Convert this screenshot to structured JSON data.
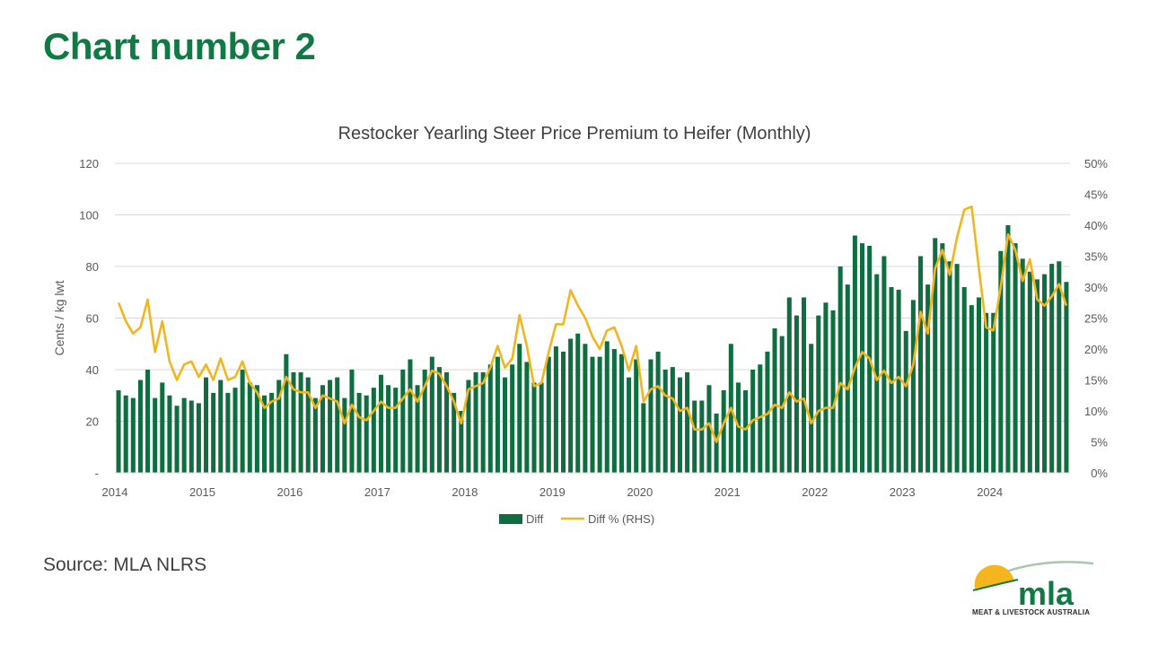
{
  "slide": {
    "title": "Chart number 2",
    "source": "Source: MLA NLRS"
  },
  "logo": {
    "wordmark": "mla",
    "tagline": "MEAT & LIVESTOCK AUSTRALIA",
    "colors": {
      "sun": "#f5b51c",
      "green": "#0f7a44",
      "arc": "#a7c9a9"
    }
  },
  "chart_data": {
    "type": "bar",
    "title": "Restocker Yearling Steer Price Premium to Heifer (Monthly)",
    "ylabel": "Cents / kg lwt",
    "y2label": "",
    "ylim": [
      0,
      120
    ],
    "y2lim": [
      0,
      0.5
    ],
    "yticks": [
      "-",
      "20",
      "40",
      "60",
      "80",
      "100",
      "120"
    ],
    "y2ticks": [
      "0%",
      "5%",
      "10%",
      "15%",
      "20%",
      "25%",
      "30%",
      "35%",
      "40%",
      "45%",
      "50%"
    ],
    "xticks": [
      "2014",
      "2015",
      "2016",
      "2017",
      "2018",
      "2019",
      "2020",
      "2021",
      "2022",
      "2023",
      "2024"
    ],
    "grid": true,
    "legend_position": "bottom",
    "colors": {
      "bars": "#0f6e3f",
      "line": "#f2b51e",
      "grid": "#d9d9d9",
      "text": "#595959"
    },
    "series": [
      {
        "name": "Diff",
        "type": "bar",
        "axis": "left",
        "values": [
          32,
          30,
          29,
          36,
          40,
          29,
          35,
          30,
          26,
          29,
          28,
          27,
          37,
          31,
          36,
          31,
          33,
          40,
          35,
          34,
          30,
          31,
          36,
          46,
          39,
          39,
          37,
          29,
          34,
          36,
          37,
          29,
          40,
          31,
          30,
          33,
          38,
          34,
          33,
          40,
          44,
          34,
          40,
          45,
          41,
          39,
          31,
          24,
          36,
          39,
          39,
          42,
          45,
          37,
          42,
          50,
          43,
          35,
          35,
          45,
          49,
          47,
          52,
          54,
          50,
          45,
          45,
          51,
          48,
          46,
          37,
          44,
          27,
          44,
          47,
          40,
          41,
          37,
          39,
          28,
          28,
          34,
          23,
          32,
          50,
          35,
          32,
          40,
          42,
          47,
          56,
          53,
          68,
          61,
          68,
          50,
          61,
          66,
          63,
          80,
          73,
          92,
          89,
          88,
          77,
          84,
          72,
          71,
          55,
          67,
          84,
          73,
          91,
          89,
          82,
          81,
          72,
          65,
          68,
          62,
          62,
          86,
          96,
          89,
          83,
          78,
          75,
          77,
          81,
          82,
          74
        ],
        "bar_count_note_hidden": null
      },
      {
        "name": "Diff % (RHS)",
        "type": "line",
        "axis": "right",
        "values": [
          0.275,
          0.245,
          0.225,
          0.235,
          0.28,
          0.195,
          0.245,
          0.18,
          0.15,
          0.175,
          0.18,
          0.155,
          0.175,
          0.15,
          0.185,
          0.15,
          0.155,
          0.18,
          0.145,
          0.13,
          0.105,
          0.115,
          0.12,
          0.155,
          0.135,
          0.13,
          0.13,
          0.105,
          0.125,
          0.12,
          0.115,
          0.08,
          0.11,
          0.09,
          0.085,
          0.1,
          0.115,
          0.105,
          0.105,
          0.12,
          0.135,
          0.115,
          0.14,
          0.165,
          0.16,
          0.14,
          0.115,
          0.08,
          0.135,
          0.14,
          0.145,
          0.17,
          0.205,
          0.17,
          0.185,
          0.255,
          0.205,
          0.14,
          0.145,
          0.195,
          0.24,
          0.24,
          0.295,
          0.27,
          0.25,
          0.22,
          0.2,
          0.23,
          0.235,
          0.205,
          0.165,
          0.205,
          0.115,
          0.135,
          0.14,
          0.125,
          0.12,
          0.1,
          0.105,
          0.07,
          0.07,
          0.08,
          0.05,
          0.08,
          0.105,
          0.075,
          0.07,
          0.085,
          0.09,
          0.095,
          0.11,
          0.105,
          0.13,
          0.115,
          0.12,
          0.08,
          0.1,
          0.105,
          0.105,
          0.145,
          0.135,
          0.17,
          0.195,
          0.185,
          0.15,
          0.165,
          0.145,
          0.155,
          0.14,
          0.175,
          0.26,
          0.225,
          0.33,
          0.36,
          0.32,
          0.38,
          0.425,
          0.43,
          0.33,
          0.235,
          0.23,
          0.3,
          0.385,
          0.36,
          0.31,
          0.345,
          0.28,
          0.27,
          0.285,
          0.305,
          0.27
        ]
      }
    ]
  }
}
